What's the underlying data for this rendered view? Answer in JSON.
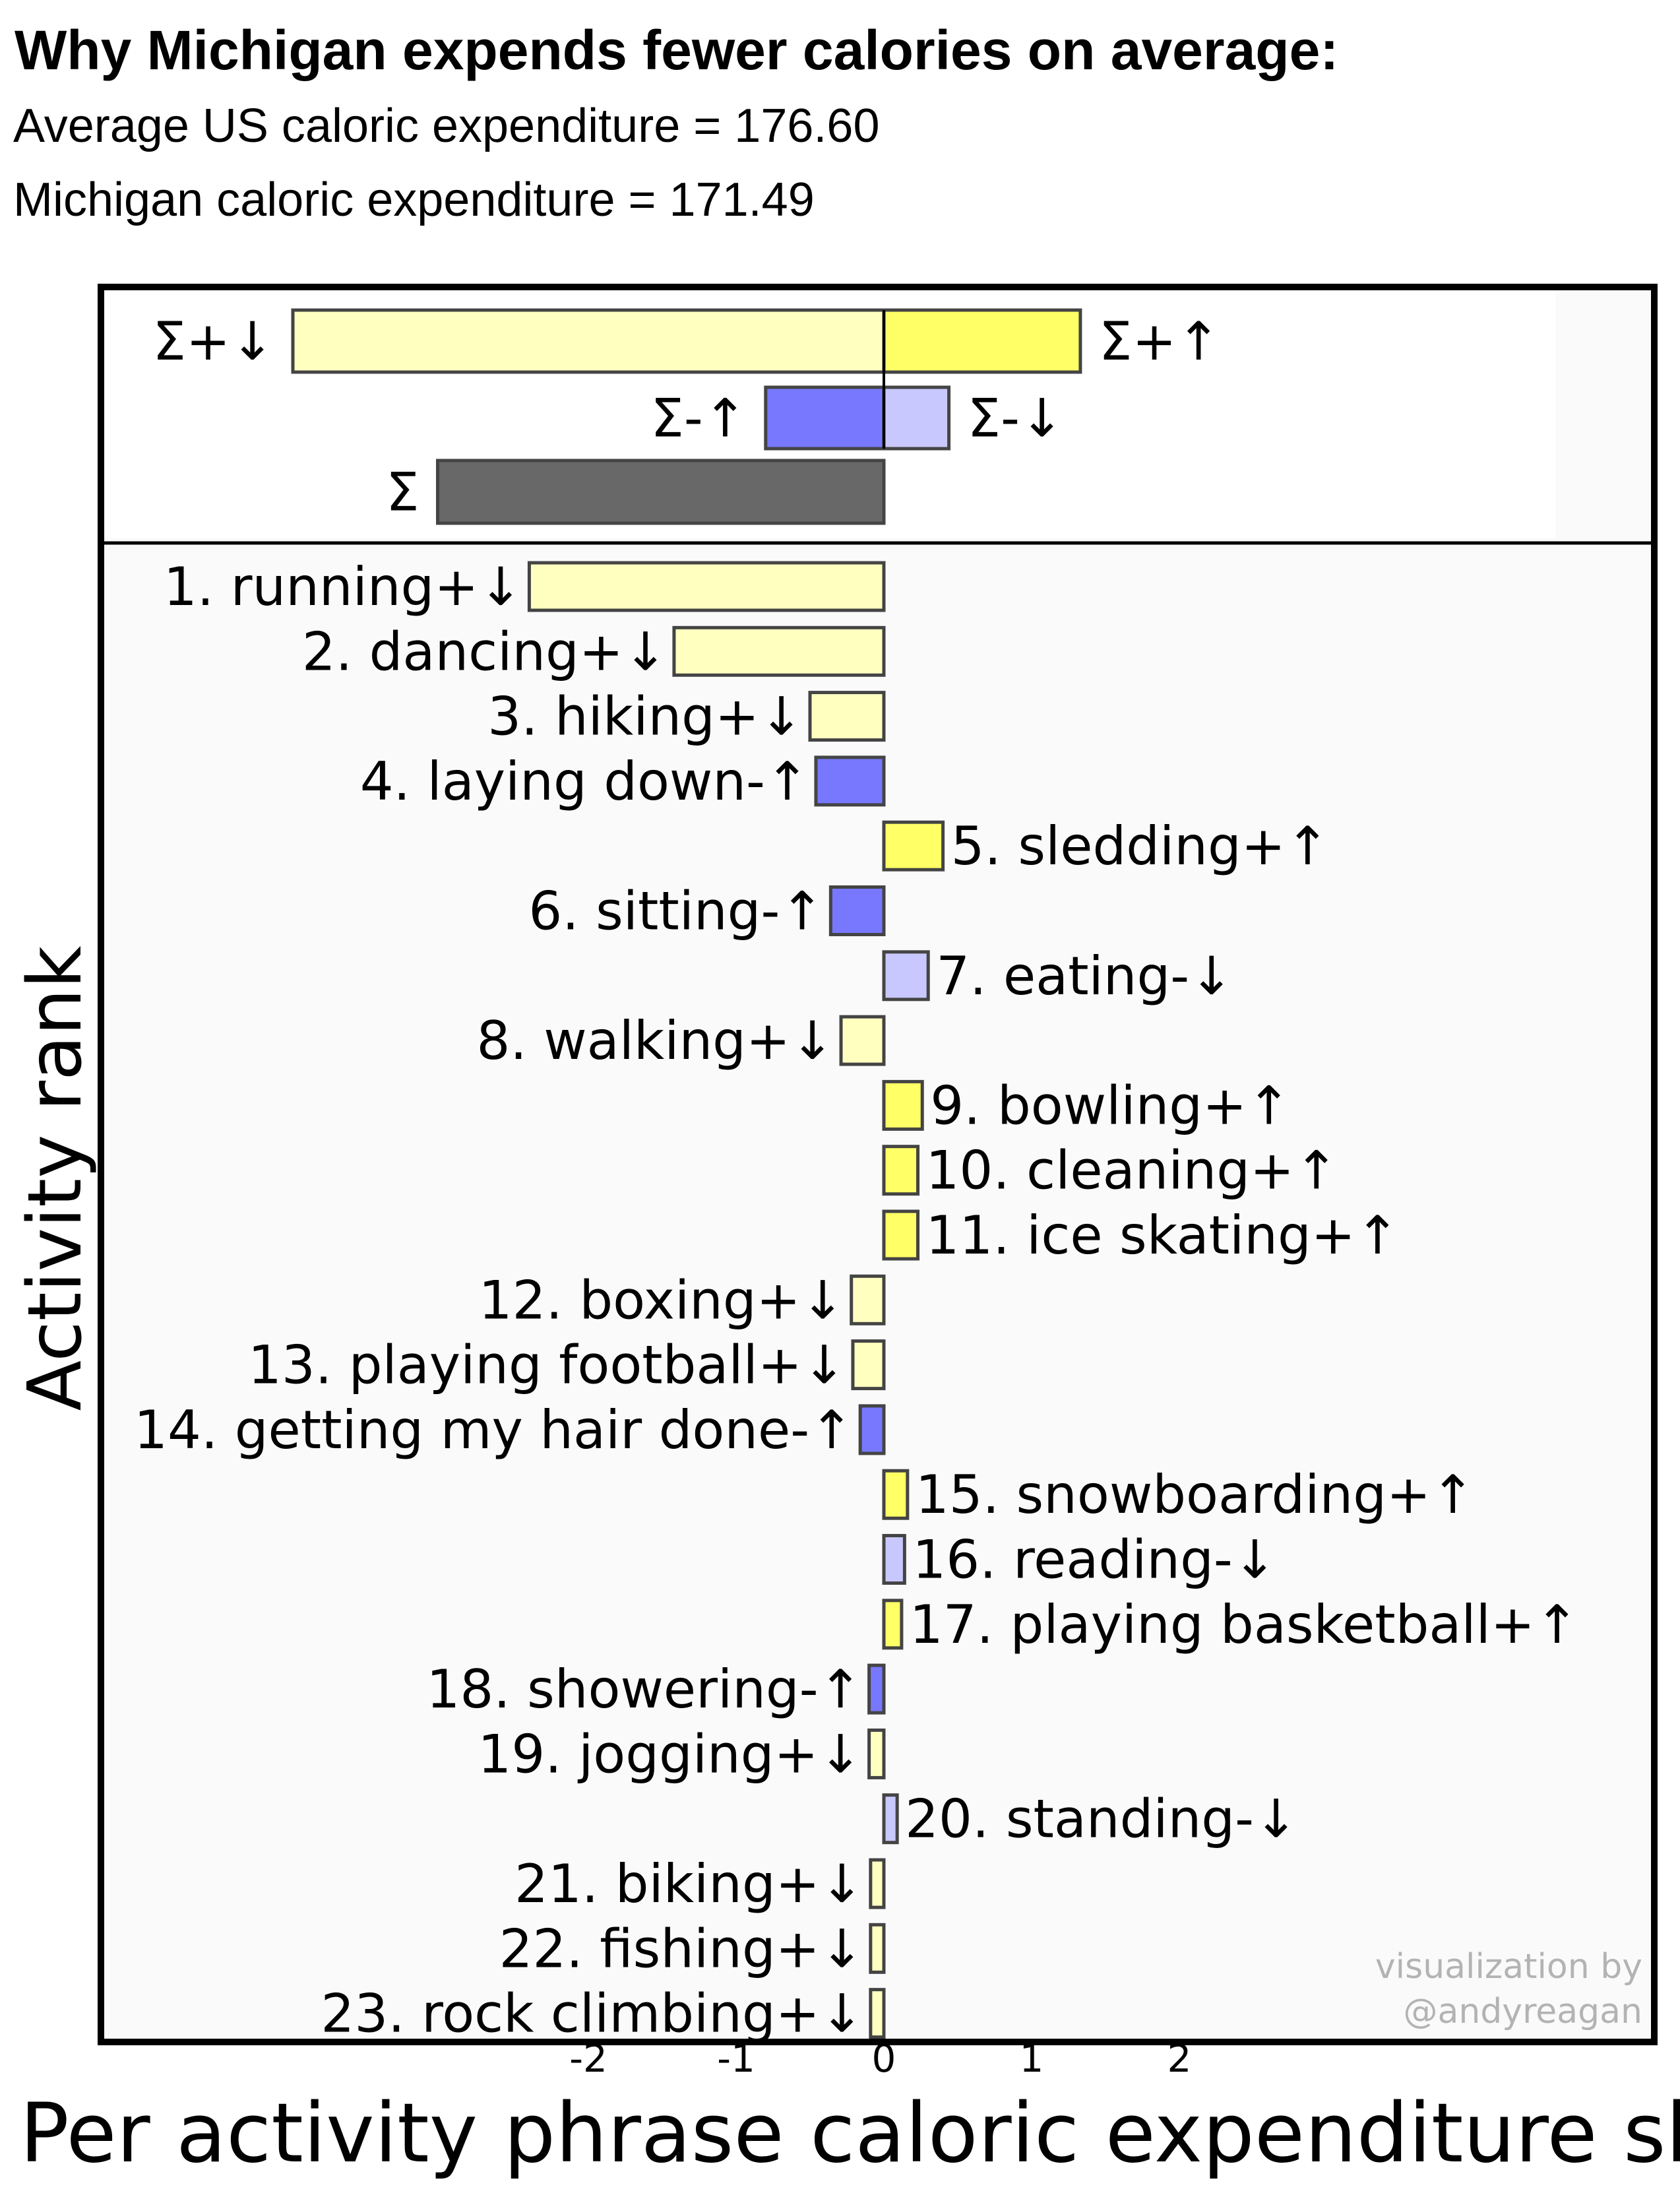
{
  "header": {
    "title": "Why Michigan expends fewer calories on average:",
    "line_us": "Average US caloric expenditure = 176.60",
    "line_state": "Michigan caloric expenditure = 171.49"
  },
  "credit": {
    "line1": "visualization by",
    "line2": "@andyreagan"
  },
  "colors": {
    "pos_down": "#ffffc0",
    "pos_up": "#ffff66",
    "neg_up": "#7878ff",
    "neg_down": "#c8c8ff",
    "total": "#686868",
    "edge": "#444444",
    "panel": "#fafafa"
  },
  "chart_data": {
    "type": "bar",
    "orientation": "horizontal",
    "xlabel": "Per activity phrase caloric expenditure shi",
    "ylabel": "Activity rank",
    "xlim": [
      -2.4,
      2.6
    ],
    "xticks": [
      "-2",
      "-1",
      "0",
      "1",
      "2"
    ],
    "grid": false,
    "summary": [
      {
        "label": "Σ+↓",
        "value": -4.0,
        "kind": "pos_down"
      },
      {
        "label": "Σ+↑",
        "value": 1.33,
        "kind": "pos_up"
      },
      {
        "label": "Σ-↑",
        "value": -0.8,
        "kind": "neg_up"
      },
      {
        "label": "Σ-↓",
        "value": 0.44,
        "kind": "neg_down"
      },
      {
        "label": "Σ",
        "value": -3.02,
        "kind": "total"
      }
    ],
    "categories": [
      "1. running+↓",
      "2. dancing+↓",
      "3. hiking+↓",
      "4. laying down-↑",
      "5. sledding+↑",
      "6. sitting-↑",
      "7. eating-↓",
      "8. walking+↓",
      "9. bowling+↑",
      "10. cleaning+↑",
      "11. ice skating+↑",
      "12. boxing+↓",
      "13. playing football+↓",
      "14. getting my hair done-↑",
      "15. snowboarding+↑",
      "16. reading-↓",
      "17. playing basketball+↑",
      "18. showering-↑",
      "19. jogging+↓",
      "20. standing-↓",
      "21. biking+↓",
      "22. fishing+↓",
      "23. rock climbing+↓"
    ],
    "values": [
      -2.4,
      -1.42,
      -0.5,
      -0.46,
      0.4,
      -0.36,
      0.3,
      -0.29,
      0.26,
      0.23,
      0.23,
      -0.22,
      -0.21,
      -0.16,
      0.16,
      0.14,
      0.12,
      -0.1,
      -0.1,
      0.09,
      -0.09,
      -0.09,
      -0.09
    ],
    "kinds": [
      "pos_down",
      "pos_down",
      "pos_down",
      "neg_up",
      "pos_up",
      "neg_up",
      "neg_down",
      "pos_down",
      "pos_up",
      "pos_up",
      "pos_up",
      "pos_down",
      "pos_down",
      "neg_up",
      "pos_up",
      "neg_down",
      "pos_up",
      "neg_up",
      "pos_down",
      "neg_down",
      "pos_down",
      "pos_down",
      "pos_down"
    ]
  }
}
